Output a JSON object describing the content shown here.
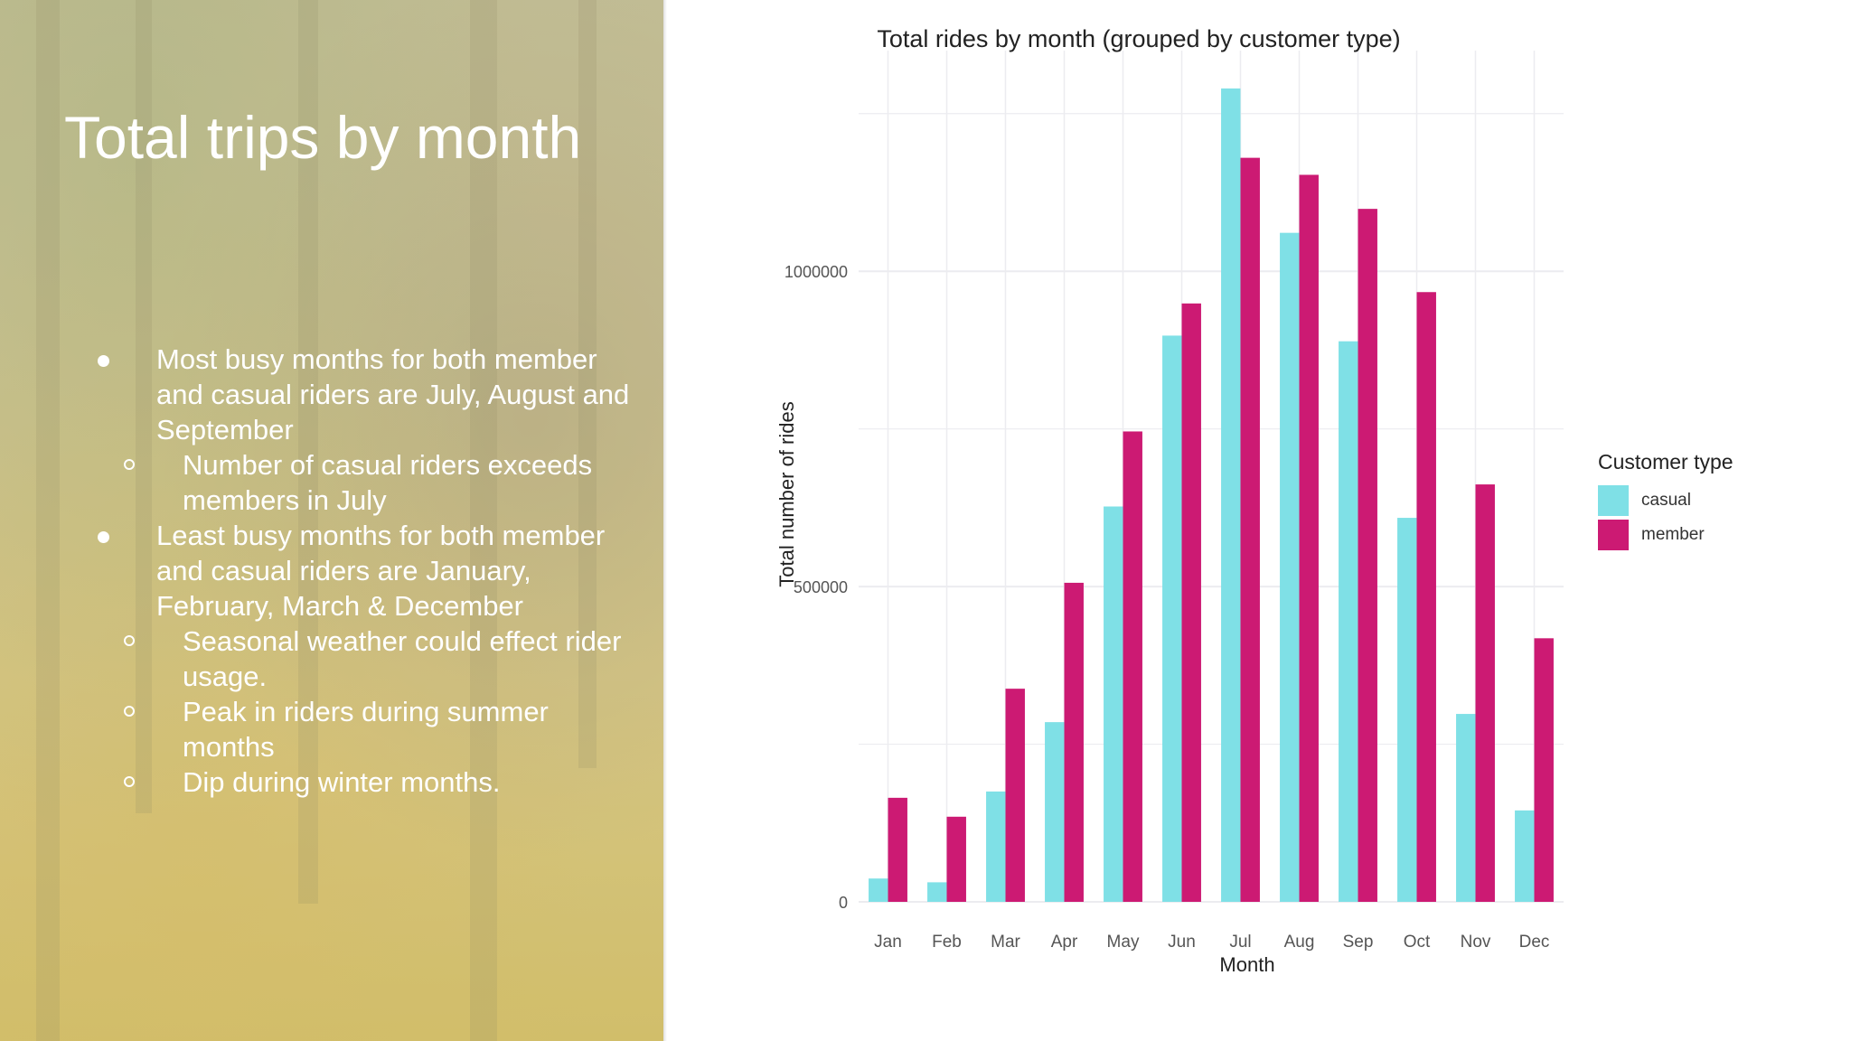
{
  "slide": {
    "title": "Total trips by month",
    "bullets": [
      {
        "text": "Most busy months for both member and casual riders are July, August and September",
        "subs": [
          "Number of casual riders exceeds members in July"
        ]
      },
      {
        "text": "Least busy months for both member and casual riders are January, February, March & December",
        "subs": [
          "Seasonal weather could effect rider usage.",
          "Peak in riders during summer months",
          "Dip during winter months."
        ]
      }
    ]
  },
  "colors": {
    "casual": "#7fe0e6",
    "member": "#cc1a73",
    "grid": "#ececf0",
    "axis_text": "#555555"
  },
  "chart_data": {
    "type": "bar",
    "title": "Total rides by month (grouped by customer type)",
    "xlabel": "Month",
    "ylabel": "Total number of rides",
    "categories": [
      "Jan",
      "Feb",
      "Mar",
      "Apr",
      "May",
      "Jun",
      "Jul",
      "Aug",
      "Sep",
      "Oct",
      "Nov",
      "Dec"
    ],
    "series": [
      {
        "name": "casual",
        "values": [
          37000,
          31000,
          175000,
          285000,
          627000,
          898000,
          1290000,
          1061000,
          889000,
          609000,
          298000,
          145000
        ]
      },
      {
        "name": "member",
        "values": [
          165000,
          135000,
          338000,
          506000,
          746000,
          949000,
          1180000,
          1153000,
          1099000,
          967000,
          662000,
          418000
        ]
      }
    ],
    "ylim": [
      0,
      1350000
    ],
    "yticks": [
      0,
      500000,
      1000000
    ],
    "ytick_labels": [
      "0",
      "500000",
      "1000000"
    ],
    "grid": true,
    "legend": {
      "title": "Customer type",
      "position": "right"
    }
  }
}
